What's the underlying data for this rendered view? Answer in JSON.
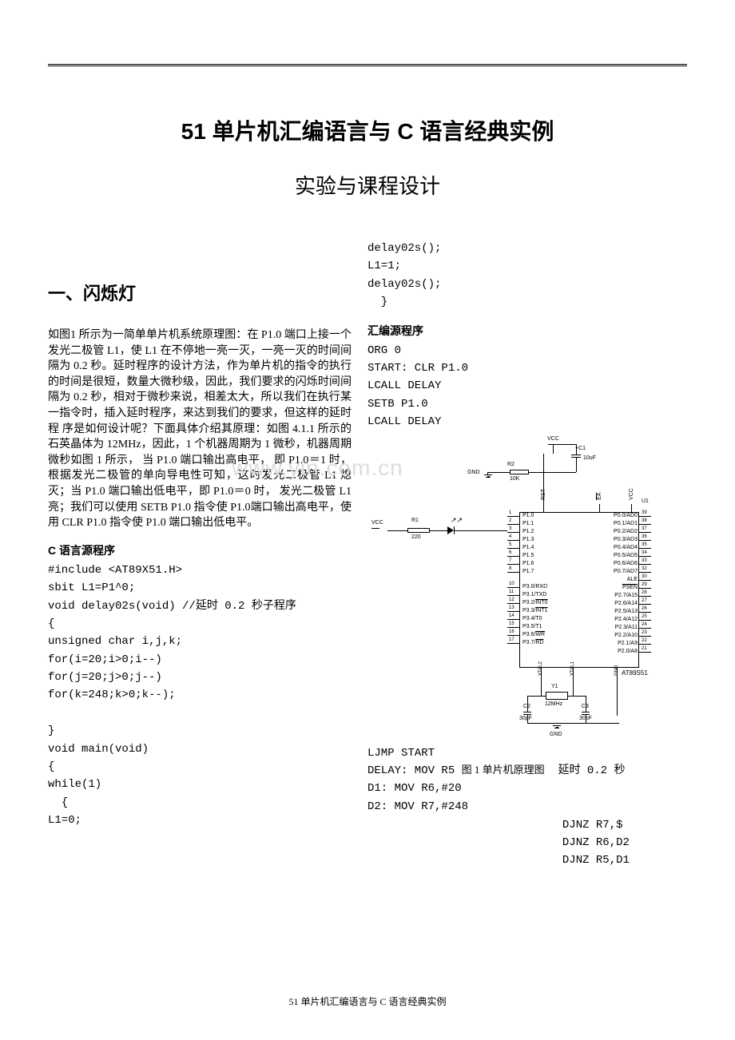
{
  "doc": {
    "main_title": "51 单片机汇编语言与 C 语言经典实例",
    "sub_title": "实验与课程设计",
    "footer": "51 单片机汇编语言与 C 语言经典实例",
    "watermark": "www.yin.com.cn"
  },
  "section1": {
    "heading": "一、闪烁灯",
    "para": "如图1 所示为一简单单片机系统原理图：在 P1.0 端口上接一个发光二极管 L1，使 L1 在不停地一亮一灭，一亮一灭的时间间隔为 0.2 秒。延时程序的设计方法，作为单片机的指令的执行的时间是很短，数量大微秒级，因此，我们要求的闪烁时间间隔为 0.2 秒，相对于微秒来说，相差太大，所以我们在执行某一指令时，插入延时程序，来达到我们的要求，但这样的延时程\n序是如何设计呢？下面具体介绍其原理：如图 4.1.1 所示的石英晶体为 12MHz，因此，1 个机器周期为 1 微秒，机器周期 微秒如图 1 所示， 当 P1.0 端口输出高电平， 即 P1.0＝1 时，根据发光二极管的单向导电性可知，这时发光二极管 L1 熄灭；当 P1.0 端口输出低电平，即 P1.0＝0 时， 发光二极管 L1 亮；我们可以使用 SETB P1.0 指令使 P1.0端口输出高电平，使用 CLR P1.0 指令使 P1.0 端口输出低电平。",
    "c_heading": "C 语言源程序",
    "c_code": "#include <AT89X51.H>\nsbit L1=P1^0;\nvoid delay02s(void) //延时 0.2 秒子程序\n{\nunsigned char i,j,k;\nfor(i=20;i>0;i--)\nfor(j=20;j>0;j--)\nfor(k=248;k>0;k--);\n\n}\nvoid main(void)\n{\nwhile(1)\n  {\nL1=0;",
    "c_code_right": "delay02s();\nL1=1;\ndelay02s();\n  }",
    "asm_heading": "汇编源程序",
    "asm_top": "ORG 0\nSTART: CLR P1.0\nLCALL DELAY\nSETB P1.0\nLCALL DELAY",
    "asm_bottom_left": "LJMP START\nDELAY: MOV R5 ",
    "fig_caption": "图 1 单片机原理图",
    "asm_bottom_suffix": "  延时 0.2 秒",
    "asm_bottom_rest": "D1: MOV R6,#20\nD2: MOV R7,#248",
    "asm_right": "DJNZ R7,$\nDJNZ R6,D2\nDJNZ R5,D1"
  },
  "circuit": {
    "vcc": "VCC",
    "gnd": "GND",
    "r1": "R1",
    "r1_val": "220",
    "r2": "R2",
    "r2_val": "10K",
    "c1": "C1",
    "c1_val": "10uF",
    "c2": "C2",
    "c2_val": "30pF",
    "c3": "C3",
    "c3_val": "30pF",
    "y1": "Y1",
    "y1_val": "12MHz",
    "u1": "U1",
    "chip": "AT89S51",
    "left_pins": [
      {
        "num": "1",
        "name": "P1.0"
      },
      {
        "num": "2",
        "name": "P1.1"
      },
      {
        "num": "3",
        "name": "P1.2"
      },
      {
        "num": "4",
        "name": "P1.3"
      },
      {
        "num": "5",
        "name": "P1.4"
      },
      {
        "num": "6",
        "name": "P1.5"
      },
      {
        "num": "7",
        "name": "P1.6"
      },
      {
        "num": "8",
        "name": "P1.7"
      },
      {
        "num": "",
        "name": ""
      },
      {
        "num": "10",
        "name": "P3.0/RXD"
      },
      {
        "num": "11",
        "name": "P3.1/TXD"
      },
      {
        "num": "12",
        "name": "P3.2/INT0"
      },
      {
        "num": "13",
        "name": "P3.3/INT1"
      },
      {
        "num": "14",
        "name": "P3.4/T0"
      },
      {
        "num": "15",
        "name": "P3.5/T1"
      },
      {
        "num": "16",
        "name": "P3.6/WR"
      },
      {
        "num": "17",
        "name": "P3.7/RD"
      }
    ],
    "right_pins": [
      {
        "num": "39",
        "name": "P0.0/AD0"
      },
      {
        "num": "38",
        "name": "P0.1/AD1"
      },
      {
        "num": "37",
        "name": "P0.2/AD2"
      },
      {
        "num": "36",
        "name": "P0.3/AD3"
      },
      {
        "num": "35",
        "name": "P0.4/AD4"
      },
      {
        "num": "34",
        "name": "P0.5/AD5"
      },
      {
        "num": "33",
        "name": "P0.6/AD6"
      },
      {
        "num": "32",
        "name": "P0.7/AD7"
      },
      {
        "num": "30",
        "name": "ALE"
      },
      {
        "num": "29",
        "name": "PSEN"
      },
      {
        "num": "28",
        "name": "P2.7/A15"
      },
      {
        "num": "27",
        "name": "P2.6/A14"
      },
      {
        "num": "26",
        "name": "P2.5/A13"
      },
      {
        "num": "25",
        "name": "P2.4/A12"
      },
      {
        "num": "24",
        "name": "P2.3/A11"
      },
      {
        "num": "23",
        "name": "P2.2/A10"
      },
      {
        "num": "22",
        "name": "P2.1/A9"
      },
      {
        "num": "21",
        "name": "P2.0/A8"
      }
    ],
    "top_pins": [
      "RST",
      "EA",
      "VCC"
    ],
    "bottom_pins": [
      "XTAL2",
      "XTAL1",
      "GND"
    ]
  }
}
